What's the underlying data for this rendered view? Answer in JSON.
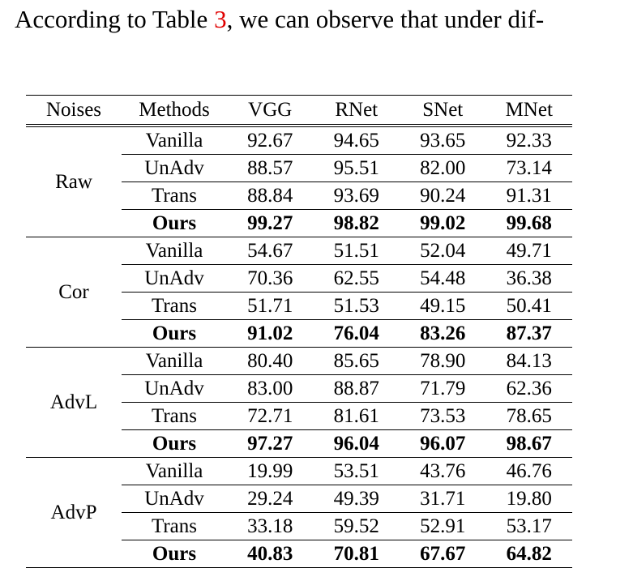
{
  "intro": {
    "before": "According to Table ",
    "ref": "3",
    "after": ", we can observe that under dif-"
  },
  "table": {
    "headers": [
      "Noises",
      "Methods",
      "VGG",
      "RNet",
      "SNet",
      "MNet"
    ],
    "groups": [
      {
        "noise": "Raw",
        "rows": [
          {
            "method": "Vanilla",
            "values": [
              "92.67",
              "94.65",
              "93.65",
              "92.33"
            ]
          },
          {
            "method": "UnAdv",
            "values": [
              "88.57",
              "95.51",
              "82.00",
              "73.14"
            ]
          },
          {
            "method": "Trans",
            "values": [
              "88.84",
              "93.69",
              "90.24",
              "91.31"
            ]
          },
          {
            "method": "Ours",
            "values": [
              "99.27",
              "98.82",
              "99.02",
              "99.68"
            ]
          }
        ]
      },
      {
        "noise": "Cor",
        "rows": [
          {
            "method": "Vanilla",
            "values": [
              "54.67",
              "51.51",
              "52.04",
              "49.71"
            ]
          },
          {
            "method": "UnAdv",
            "values": [
              "70.36",
              "62.55",
              "54.48",
              "36.38"
            ]
          },
          {
            "method": "Trans",
            "values": [
              "51.71",
              "51.53",
              "49.15",
              "50.41"
            ]
          },
          {
            "method": "Ours",
            "values": [
              "91.02",
              "76.04",
              "83.26",
              "87.37"
            ]
          }
        ]
      },
      {
        "noise": "AdvL",
        "rows": [
          {
            "method": "Vanilla",
            "values": [
              "80.40",
              "85.65",
              "78.90",
              "84.13"
            ]
          },
          {
            "method": "UnAdv",
            "values": [
              "83.00",
              "88.87",
              "71.79",
              "62.36"
            ]
          },
          {
            "method": "Trans",
            "values": [
              "72.71",
              "81.61",
              "73.53",
              "78.65"
            ]
          },
          {
            "method": "Ours",
            "values": [
              "97.27",
              "96.04",
              "96.07",
              "98.67"
            ]
          }
        ]
      },
      {
        "noise": "AdvP",
        "rows": [
          {
            "method": "Vanilla",
            "values": [
              "19.99",
              "53.51",
              "43.76",
              "46.76"
            ]
          },
          {
            "method": "UnAdv",
            "values": [
              "29.24",
              "49.39",
              "31.71",
              "19.80"
            ]
          },
          {
            "method": "Trans",
            "values": [
              "33.18",
              "59.52",
              "52.91",
              "53.17"
            ]
          },
          {
            "method": "Ours",
            "values": [
              "40.83",
              "70.81",
              "67.67",
              "64.82"
            ]
          }
        ]
      }
    ]
  }
}
